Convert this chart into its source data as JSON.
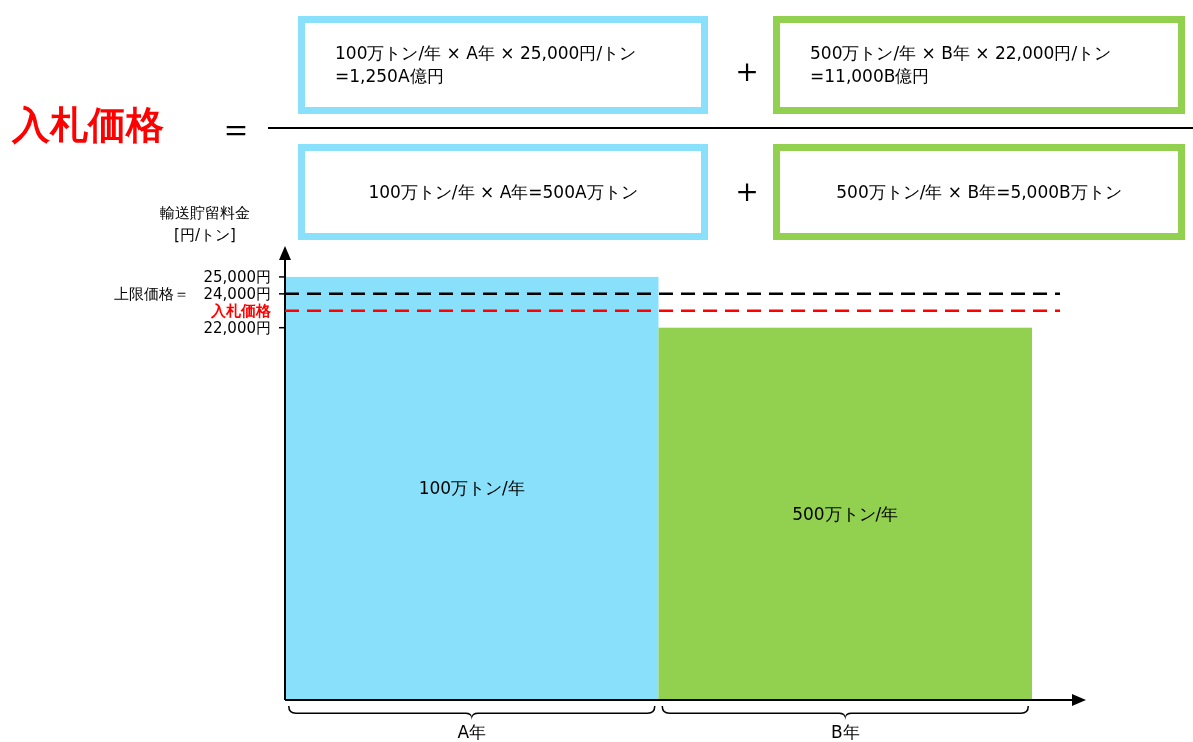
{
  "chart_data": {
    "type": "bar",
    "title": "入札価格",
    "ylabel": "輸送貯留料金 [円/トン]",
    "categories": [
      "A年",
      "B年"
    ],
    "values": [
      25000,
      22000
    ],
    "colors": [
      "#89e0fa",
      "#92d050"
    ],
    "ylim": [
      0,
      26000
    ],
    "yticks": [
      {
        "value": 25000,
        "label": "25,000円"
      },
      {
        "value": 24000,
        "label": "上限価格＝ 24,000円"
      },
      {
        "value": 22000,
        "label": "22,000円"
      }
    ],
    "ref_lines": [
      {
        "axis": "y",
        "value": 24000,
        "color": "#000000",
        "line_style": "dashed"
      },
      {
        "axis": "y",
        "value": 23000,
        "label": "入札価格",
        "color": "#ff0000",
        "line_style": "dashed"
      }
    ],
    "annotations": [
      "＝",
      "100万トン/年 × A年 × 25,000円/トン =1,250A億円",
      "＋",
      "500万トン/年 × B年 × 22,000円/トン =11,000B億円",
      "100万トン/年 × A年=500A万トン",
      "＋",
      "500万トン/年 × B年=5,000B万トン",
      "100万トン/年",
      "500万トン/年"
    ],
    "grid": false
  }
}
